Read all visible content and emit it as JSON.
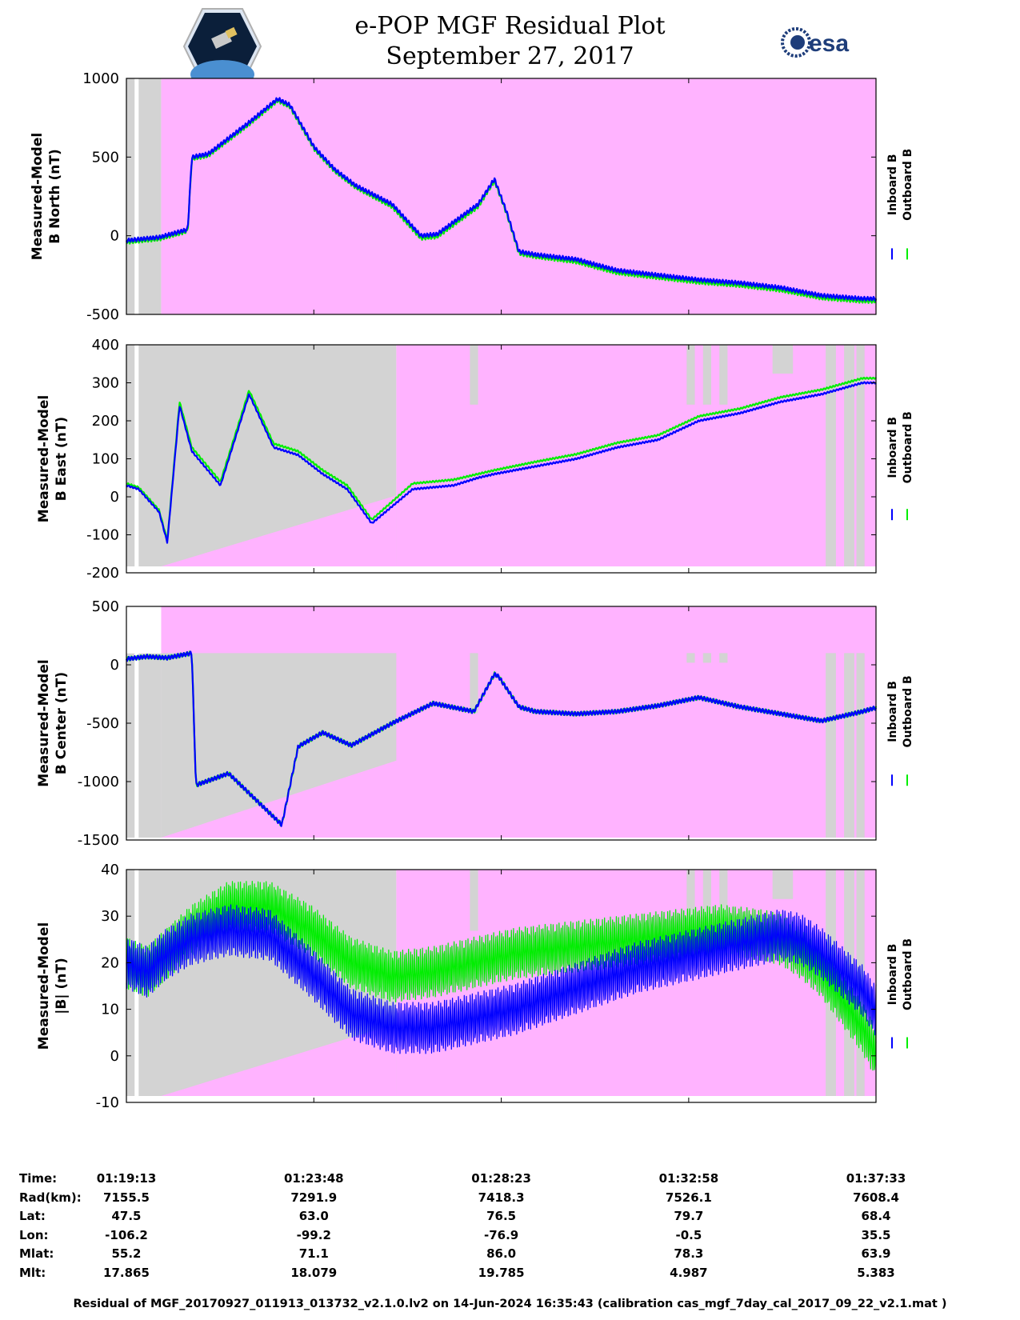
{
  "header": {
    "title_line1": "e-POP MGF Residual Plot",
    "title_line2": "September 27, 2017",
    "logo_left": "cassiope-mission-logo",
    "logo_right_text": "esa"
  },
  "colors": {
    "inboard": "#0000ff",
    "outboard": "#00ee00",
    "shade_pink": "#ffb3ff",
    "shade_gray": "#d3d3d3"
  },
  "legend": {
    "inboard": "Inboard B",
    "outboard": "Outboard B"
  },
  "chart_data": [
    {
      "type": "line",
      "ylabel_line1": "Measured-Model",
      "ylabel_line2": "B North (nT)",
      "ylim": [
        -500,
        1000
      ],
      "yticks": [
        "1000",
        "500",
        "0",
        "-500"
      ],
      "x_minutes": [
        0,
        0.8,
        1.5,
        1.6,
        2.0,
        3.0,
        3.7,
        4.0,
        4.6,
        5.1,
        5.6,
        6.5,
        7.2,
        7.6,
        8.6,
        9.0,
        9.3,
        9.6,
        10.0,
        11,
        12,
        13,
        14,
        15,
        16,
        17,
        18,
        18.3
      ],
      "series": [
        {
          "name": "Inboard B",
          "values": [
            -30,
            -10,
            40,
            500,
            520,
            720,
            870,
            830,
            560,
            420,
            320,
            200,
            0,
            10,
            200,
            360,
            150,
            -100,
            -120,
            -150,
            -220,
            -250,
            -280,
            -300,
            -330,
            -380,
            -400,
            -400
          ]
        },
        {
          "name": "Outboard B",
          "values": [
            -40,
            -20,
            30,
            490,
            510,
            710,
            860,
            820,
            550,
            410,
            310,
            185,
            -15,
            -5,
            185,
            350,
            140,
            -112,
            -132,
            -165,
            -235,
            -265,
            -295,
            -315,
            -345,
            -395,
            -415,
            -415
          ]
        }
      ]
    },
    {
      "type": "line",
      "ylabel_line1": "Measured-Model",
      "ylabel_line2": "B East (nT)",
      "ylim": [
        -200,
        400
      ],
      "yticks": [
        "400",
        "300",
        "200",
        "100",
        "0",
        "-100",
        "-200"
      ],
      "x_minutes": [
        0,
        0.3,
        0.8,
        1.0,
        1.3,
        1.6,
        2.3,
        3.0,
        3.6,
        4.2,
        4.8,
        5.4,
        6.0,
        7.0,
        8.0,
        8.6,
        9.0,
        10,
        11,
        12,
        13,
        14,
        15,
        16,
        17,
        18,
        18.3
      ],
      "series": [
        {
          "name": "Inboard B",
          "values": [
            30,
            20,
            -40,
            -120,
            240,
            120,
            30,
            270,
            130,
            110,
            60,
            20,
            -70,
            20,
            30,
            50,
            60,
            80,
            100,
            130,
            150,
            200,
            220,
            250,
            270,
            300,
            300
          ]
        },
        {
          "name": "Outboard B",
          "values": [
            35,
            25,
            -35,
            -115,
            250,
            130,
            40,
            280,
            140,
            120,
            70,
            30,
            -60,
            35,
            45,
            60,
            70,
            92,
            112,
            142,
            162,
            212,
            232,
            262,
            282,
            312,
            312
          ]
        }
      ]
    },
    {
      "type": "line",
      "ylabel_line1": "Measured-Model",
      "ylabel_line2": "B Center (nT)",
      "ylim": [
        -1500,
        500
      ],
      "yticks": [
        "500",
        "0",
        "-500",
        "-1000",
        "-1500"
      ],
      "x_minutes": [
        0,
        0.5,
        1.0,
        1.6,
        1.7,
        2.5,
        3.8,
        4.2,
        4.8,
        5.5,
        6.5,
        7.5,
        8.5,
        9.0,
        9.1,
        9.6,
        10,
        11,
        12,
        13,
        14,
        15,
        16,
        17,
        18,
        18.3
      ],
      "series": [
        {
          "name": "Inboard B",
          "values": [
            50,
            70,
            60,
            100,
            -1030,
            -930,
            -1370,
            -700,
            -580,
            -690,
            -500,
            -330,
            -400,
            -80,
            -100,
            -360,
            -400,
            -420,
            -400,
            -350,
            -280,
            -360,
            -420,
            -480,
            -400,
            -370
          ]
        },
        {
          "name": "Outboard B",
          "values": [
            50,
            70,
            60,
            100,
            -1030,
            -930,
            -1370,
            -700,
            -580,
            -690,
            -500,
            -330,
            -400,
            -80,
            -100,
            -360,
            -400,
            -420,
            -400,
            -350,
            -280,
            -360,
            -420,
            -480,
            -400,
            -370
          ]
        }
      ]
    },
    {
      "type": "line",
      "ylabel_line1": "Measured-Model",
      "ylabel_line2": "|B| (nT)",
      "ylim": [
        -10,
        40
      ],
      "yticks": [
        "40",
        "30",
        "20",
        "10",
        "0",
        "-10"
      ],
      "x_minutes": [
        0,
        0.5,
        1.0,
        1.6,
        2.5,
        3.5,
        4.5,
        5.5,
        6.5,
        7.5,
        8.5,
        9.5,
        10.5,
        11.5,
        12.5,
        13.5,
        14.5,
        15.5,
        16.0,
        16.5,
        17.0,
        17.5,
        18.0,
        18.3
      ],
      "series": [
        {
          "name": "Inboard B",
          "values": [
            20,
            18,
            22,
            25,
            27,
            26,
            18,
            9,
            6,
            6,
            8,
            10,
            13,
            16,
            19,
            21,
            23,
            25,
            26,
            25,
            22,
            18,
            14,
            10
          ]
        },
        {
          "name": "Outboard B",
          "values": [
            20,
            18,
            22,
            27,
            32,
            32,
            27,
            20,
            17,
            18,
            20,
            22,
            23,
            24,
            25,
            26,
            27,
            26,
            25,
            22,
            18,
            12,
            6,
            1
          ]
        }
      ]
    }
  ],
  "x_axis": {
    "min_minutes": 0,
    "max_minutes": 18.33,
    "tick_minutes": [
      0,
      4.583,
      9.167,
      13.75,
      18.33
    ]
  },
  "footer_table": {
    "row_labels": [
      "Time:",
      "Rad(km):",
      "Lat:",
      "Lon:",
      "Mlat:",
      "Mlt:"
    ],
    "columns": [
      [
        "01:19:13",
        "7155.5",
        "47.5",
        "-106.2",
        "55.2",
        "17.865"
      ],
      [
        "01:23:48",
        "7291.9",
        "63.0",
        "-99.2",
        "71.1",
        "18.079"
      ],
      [
        "01:28:23",
        "7418.3",
        "76.5",
        "-76.9",
        "86.0",
        "19.785"
      ],
      [
        "01:32:58",
        "7526.1",
        "79.7",
        "-0.5",
        "78.3",
        "4.987"
      ],
      [
        "01:37:33",
        "7608.4",
        "68.4",
        "35.5",
        "63.9",
        "5.383"
      ]
    ]
  },
  "footnote": "Residual of MGF_20170927_011913_013732_v2.1.0.lv2 on 14-Jun-2024 16:35:43 (calibration cas_mgf_7day_cal_2017_09_22_v2.1.mat )"
}
